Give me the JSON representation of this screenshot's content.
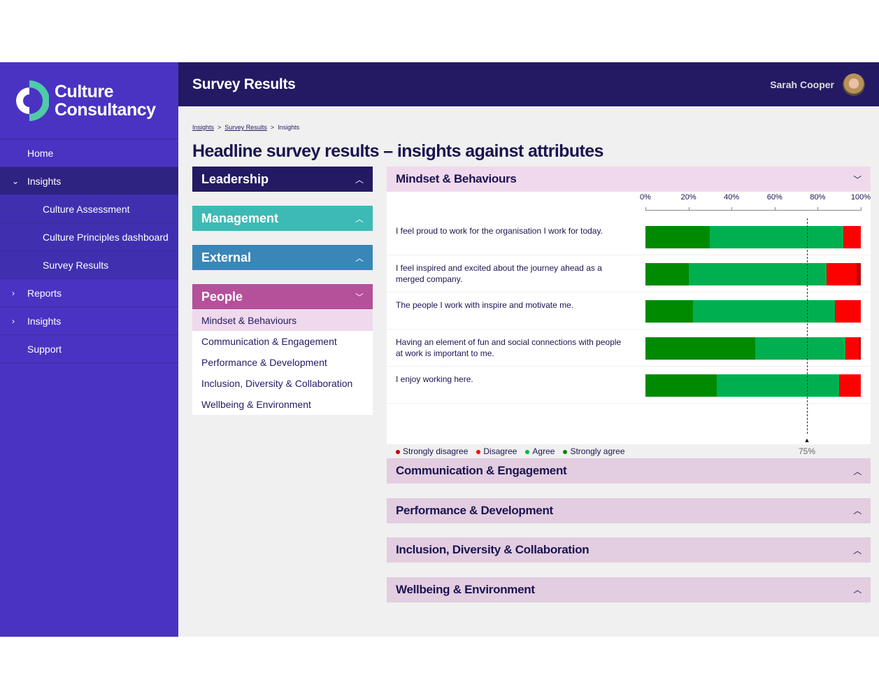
{
  "brand": {
    "line1": "Culture",
    "line2": "Consultancy"
  },
  "nav": [
    {
      "label": "Home",
      "type": "top"
    },
    {
      "label": "Insights",
      "type": "expanded",
      "chev": "⌄"
    },
    {
      "label": "Culture Assessment",
      "type": "sub"
    },
    {
      "label": "Culture Principles dashboard",
      "type": "sub"
    },
    {
      "label": "Survey Results",
      "type": "sub"
    },
    {
      "label": "Reports",
      "type": "collapsed",
      "chev": "›"
    },
    {
      "label": "Insights",
      "type": "collapsed",
      "chev": "›"
    },
    {
      "label": "Support",
      "type": "top"
    }
  ],
  "header": {
    "title": "Survey Results",
    "user": "Sarah Cooper"
  },
  "breadcrumb": [
    "Insights",
    "Survey Results",
    "Insights"
  ],
  "page_title": "Headline survey results – insights against attributes",
  "categories": [
    {
      "label": "Leadership",
      "color": "#231a63",
      "icon": "chevron-up"
    },
    {
      "label": "Management",
      "color": "#3dbab5",
      "icon": "chevron-up"
    },
    {
      "label": "External",
      "color": "#3a86b8",
      "icon": "chevron-up"
    },
    {
      "label": "People",
      "color": "#b5509a",
      "icon": "chevron-down"
    }
  ],
  "people_items": [
    "Mindset & Behaviours",
    "Communication & Engagement",
    "Performance & Development",
    "Inclusion, Diversity & Collaboration",
    "Wellbeing & Environment"
  ],
  "main_panel": {
    "title": "Mindset & Behaviours"
  },
  "chart_data": {
    "type": "bar",
    "orientation": "horizontal-stacked-100",
    "x_ticks": [
      "0%",
      "20%",
      "40%",
      "60%",
      "80%",
      "100%"
    ],
    "xlim": [
      0,
      100
    ],
    "target": {
      "value": 75,
      "label": "75%"
    },
    "legend": [
      {
        "name": "Strongly disagree",
        "color": "#c00000"
      },
      {
        "name": "Disagree",
        "color": "#ff0000"
      },
      {
        "name": "Agree",
        "color": "#00b050"
      },
      {
        "name": "Strongly agree",
        "color": "#008a00"
      }
    ],
    "categories": [
      "I feel proud to work for the organisation I work for today.",
      "I feel inspired and excited about the journey ahead as a merged company.",
      "The people I work with inspire and motivate me.",
      "Having an element of fun and social connections with people at work is important to me.",
      "I enjoy working here."
    ],
    "series": [
      {
        "name": "Strongly agree",
        "values": [
          30,
          20,
          22,
          51,
          33
        ]
      },
      {
        "name": "Agree",
        "values": [
          62,
          64,
          66,
          42,
          57
        ]
      },
      {
        "name": "Disagree",
        "values": [
          8,
          14,
          12,
          6,
          10
        ]
      },
      {
        "name": "Strongly disagree",
        "values": [
          0,
          2,
          0,
          1,
          0
        ]
      }
    ]
  },
  "other_panels": [
    "Communication & Engagement",
    "Performance & Development",
    "Inclusion, Diversity & Collaboration",
    "Wellbeing & Environment"
  ]
}
